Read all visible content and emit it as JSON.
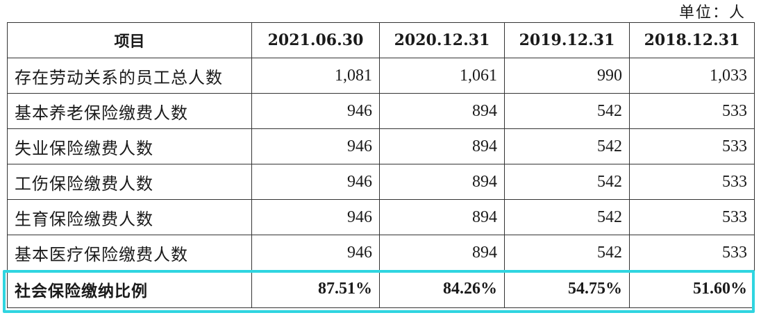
{
  "unit_label": "单位：人",
  "table": {
    "headers": [
      "项目",
      "2021.06.30",
      "2020.12.31",
      "2019.12.31",
      "2018.12.31"
    ],
    "rows": [
      {
        "label": "存在劳动关系的员工总人数",
        "values": [
          "1,081",
          "1,061",
          "990",
          "1,033"
        ]
      },
      {
        "label": "基本养老保险缴费人数",
        "values": [
          "946",
          "894",
          "542",
          "533"
        ]
      },
      {
        "label": "失业保险缴费人数",
        "values": [
          "946",
          "894",
          "542",
          "533"
        ]
      },
      {
        "label": "工伤保险缴费人数",
        "values": [
          "946",
          "894",
          "542",
          "533"
        ]
      },
      {
        "label": "生育保险缴费人数",
        "values": [
          "946",
          "894",
          "542",
          "533"
        ]
      },
      {
        "label": "基本医疗保险缴费人数",
        "values": [
          "946",
          "894",
          "542",
          "533"
        ]
      }
    ],
    "summary_row": {
      "label": "社会保险缴纳比例",
      "values": [
        "87.51%",
        "84.26%",
        "54.75%",
        "51.60%"
      ]
    }
  },
  "highlight_color": "#2fd5e0"
}
